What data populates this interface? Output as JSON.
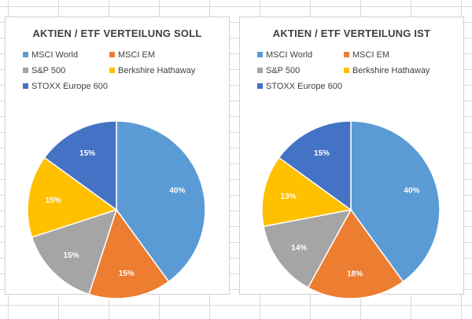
{
  "chart_data": [
    {
      "type": "pie",
      "title": "AKTIEN / ETF VERTEILUNG SOLL",
      "categories": [
        "MSCI World",
        "MSCI EM",
        "S&P 500",
        "Berkshire Hathaway",
        "STOXX Europe 600"
      ],
      "values": [
        40,
        15,
        15,
        15,
        15
      ],
      "labels": [
        "40%",
        "15%",
        "15%",
        "15%",
        "15%"
      ],
      "colors": [
        "#5b9bd5",
        "#ed7d31",
        "#a5a5a5",
        "#ffc000",
        "#4472c4"
      ],
      "legend_position": "top"
    },
    {
      "type": "pie",
      "title": "AKTIEN / ETF VERTEILUNG IST",
      "categories": [
        "MSCI World",
        "MSCI EM",
        "S&P 500",
        "Berkshire Hathaway",
        "STOXX Europe 600"
      ],
      "values": [
        40,
        18,
        14,
        13,
        15
      ],
      "labels": [
        "40%",
        "18%",
        "14%",
        "13%",
        "15%"
      ],
      "colors": [
        "#5b9bd5",
        "#ed7d31",
        "#a5a5a5",
        "#ffc000",
        "#4472c4"
      ],
      "legend_position": "top"
    }
  ]
}
